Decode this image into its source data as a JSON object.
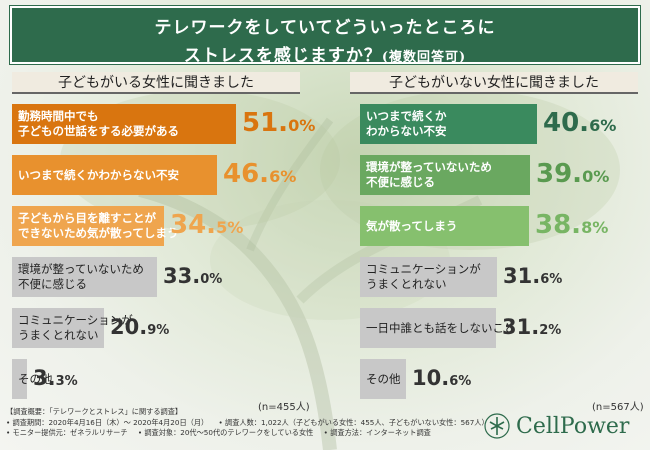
{
  "title": {
    "line1": "テレワークをしていてどういったところに",
    "line2_main": "ストレスを感じますか？",
    "line2_sub": "(複数回答可)"
  },
  "chart_data": [
    {
      "type": "bar",
      "title": "子どもがいる女性に聞きました",
      "unit": "%",
      "n_label": "(n=455人)",
      "categories": [
        [
          "勤務時間中でも",
          "子どもの世話をする必要がある"
        ],
        [
          "いつまで続くかわからない不安",
          ""
        ],
        [
          "子どもから目を離すことが",
          "できないため気が散ってしまう"
        ],
        [
          "環境が整っていないため",
          "不便に感じる"
        ],
        [
          "コミュニケーションが",
          "うまくとれない"
        ],
        [
          "その他",
          ""
        ]
      ],
      "values": [
        51.0,
        46.6,
        34.5,
        33.0,
        20.9,
        3.3
      ],
      "labels": [
        [
          "51.",
          "0%"
        ],
        [
          "46.",
          "6%"
        ],
        [
          "34.",
          "5%"
        ],
        [
          "33.",
          "0%"
        ],
        [
          "20.",
          "9%"
        ],
        [
          "3.",
          "3%"
        ]
      ]
    },
    {
      "type": "bar",
      "title": "子どもがいない女性に聞きました",
      "unit": "%",
      "n_label": "(n=567人)",
      "categories": [
        [
          "いつまで続くか",
          "わからない不安"
        ],
        [
          "環境が整っていないため",
          "不便に感じる"
        ],
        [
          "気が散ってしまう",
          ""
        ],
        [
          "コミュニケーションが",
          "うまくとれない"
        ],
        [
          "一日中誰とも話をしないこと",
          ""
        ],
        [
          "その他",
          ""
        ]
      ],
      "values": [
        40.6,
        39.0,
        38.8,
        31.6,
        31.2,
        10.6
      ],
      "labels": [
        [
          "40.",
          "6%"
        ],
        [
          "39.",
          "0%"
        ],
        [
          "38.",
          "8%"
        ],
        [
          "31.",
          "6%"
        ],
        [
          "31.",
          "2%"
        ],
        [
          "10.",
          "6%"
        ]
      ]
    }
  ],
  "colors": {
    "left_bars": [
      "#d9750f",
      "#e8912e",
      "#efa54e",
      "#c8c8c8",
      "#c8c8c8",
      "#c8c8c8"
    ],
    "left_pct": [
      "#d9750f",
      "#e8912e",
      "#efa54e",
      "#333333",
      "#333333",
      "#333333"
    ],
    "right_bars": [
      "#3a8a5e",
      "#6aa860",
      "#86c06e",
      "#c8c8c8",
      "#c8c8c8",
      "#c8c8c8"
    ],
    "right_pct": [
      "#2e6b4c",
      "#5a9a50",
      "#78b564",
      "#333333",
      "#333333",
      "#333333"
    ],
    "title_bg": "#2e6b4c"
  },
  "footer": {
    "line1": "【調査概要：「テレワークとストレス」に関する調査】",
    "line2a": "• 調査期間：2020年4月16日（木）～ 2020年4月20日（月）",
    "line2b": "• 調査人数：1,022人（子どもがいる女性：455人、子どもがいない女性：567人）",
    "line3a": "• モニター提供元：ゼネラルリサーチ",
    "line3b": "• 調査対象：20代～50代のテレワークをしている女性",
    "line3c": "• 調査方法：インターネット調査"
  },
  "logo": {
    "text": "CellPower",
    "icon": "cellpower-logo-icon"
  }
}
